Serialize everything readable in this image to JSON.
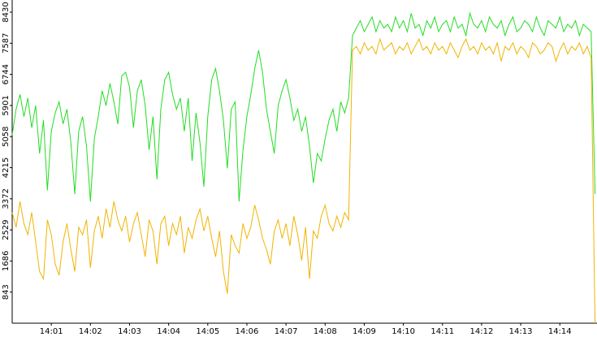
{
  "chart_data": {
    "type": "line",
    "x": [
      0,
      0.1,
      0.2,
      0.3,
      0.4,
      0.5,
      0.6,
      0.7,
      0.8,
      0.9,
      1,
      1.1,
      1.2,
      1.3,
      1.4,
      1.5,
      1.6,
      1.7,
      1.8,
      1.9,
      2,
      2.1,
      2.2,
      2.3,
      2.4,
      2.5,
      2.6,
      2.7,
      2.8,
      2.9,
      3,
      3.1,
      3.2,
      3.3,
      3.4,
      3.5,
      3.6,
      3.7,
      3.8,
      3.9,
      4,
      4.1,
      4.2,
      4.3,
      4.4,
      4.5,
      4.6,
      4.7,
      4.8,
      4.9,
      5,
      5.1,
      5.2,
      5.3,
      5.4,
      5.5,
      5.6,
      5.7,
      5.8,
      5.9,
      6,
      6.1,
      6.2,
      6.3,
      6.4,
      6.5,
      6.6,
      6.7,
      6.8,
      6.9,
      7,
      7.1,
      7.2,
      7.3,
      7.4,
      7.5,
      7.6,
      7.7,
      7.8,
      7.9,
      8,
      8.1,
      8.2,
      8.3,
      8.4,
      8.5,
      8.6,
      8.7,
      8.8,
      8.9,
      9,
      9.1,
      9.2,
      9.3,
      9.4,
      9.5,
      9.6,
      9.7,
      9.8,
      9.9,
      10,
      10.1,
      10.2,
      10.3,
      10.4,
      10.5,
      10.6,
      10.7,
      10.8,
      10.9,
      11,
      11.1,
      11.2,
      11.3,
      11.4,
      11.5,
      11.6,
      11.7,
      11.8,
      11.9,
      12,
      12.1,
      12.2,
      12.3,
      12.4,
      12.5,
      12.6,
      12.7,
      12.8,
      12.9,
      13,
      13.1,
      13.2,
      13.3,
      13.4,
      13.5,
      13.6,
      13.7,
      13.8,
      13.9,
      14,
      14.1,
      14.2,
      14.3,
      14.4,
      14.5,
      14.6,
      14.7,
      14.8,
      14.9
    ],
    "series": [
      {
        "color": "#22dd22",
        "values": [
          5100,
          5800,
          6200,
          5600,
          6100,
          5300,
          5900,
          4600,
          5500,
          3600,
          5200,
          5700,
          6000,
          5400,
          5800,
          4900,
          3500,
          5200,
          5600,
          4800,
          3300,
          5000,
          5600,
          6300,
          5900,
          6500,
          6000,
          5400,
          6700,
          6800,
          6400,
          5300,
          6300,
          6600,
          5900,
          4700,
          5600,
          3900,
          5800,
          6600,
          6800,
          6200,
          5800,
          6100,
          5200,
          6100,
          4400,
          5700,
          4900,
          3700,
          5600,
          6600,
          6900,
          6300,
          5500,
          4200,
          5800,
          6000,
          3300,
          4700,
          5600,
          6200,
          6900,
          7400,
          6800,
          5800,
          5200,
          4600,
          5900,
          6300,
          6600,
          6100,
          5500,
          5800,
          5200,
          5600,
          4800,
          3800,
          4600,
          4400,
          5000,
          5500,
          5800,
          5200,
          6000,
          5700,
          6100,
          7800,
          8000,
          8200,
          7900,
          8100,
          8300,
          7900,
          8200,
          8000,
          8100,
          7900,
          8300,
          8000,
          8200,
          7900,
          8400,
          8000,
          8100,
          7800,
          8200,
          8000,
          8300,
          7900,
          8100,
          8200,
          7900,
          8300,
          8000,
          8100,
          7800,
          8400,
          8100,
          8000,
          8200,
          7900,
          8300,
          8100,
          8000,
          8200,
          7800,
          8100,
          8300,
          7900,
          8000,
          8200,
          8100,
          7900,
          8300,
          8000,
          7800,
          8200,
          8100,
          8000,
          8300,
          7900,
          8100,
          8000,
          8200,
          7800,
          8100,
          8000,
          7900,
          3500
        ]
      },
      {
        "color": "#f0b400",
        "values": [
          3000,
          2600,
          3300,
          2700,
          2400,
          3000,
          2200,
          1400,
          1200,
          2800,
          2400,
          1600,
          1300,
          2200,
          2700,
          2000,
          1400,
          2600,
          2400,
          2800,
          1500,
          2500,
          2900,
          2300,
          3100,
          2600,
          3300,
          2800,
          2500,
          2900,
          2200,
          2700,
          3000,
          2400,
          1800,
          2800,
          2500,
          1600,
          2700,
          2900,
          2100,
          2700,
          2400,
          2900,
          1900,
          2600,
          2300,
          2800,
          3100,
          2500,
          2900,
          2300,
          1800,
          2500,
          1400,
          800,
          2400,
          2100,
          1900,
          2700,
          2300,
          2600,
          3200,
          2800,
          2300,
          2000,
          1600,
          2500,
          2800,
          2300,
          2700,
          2100,
          2900,
          2400,
          1700,
          2600,
          1200,
          2500,
          2300,
          2900,
          3200,
          2700,
          2500,
          2900,
          2600,
          3000,
          2800,
          7400,
          7500,
          7300,
          7600,
          7400,
          7500,
          7300,
          7700,
          7400,
          7500,
          7600,
          7300,
          7500,
          7400,
          7600,
          7300,
          7500,
          7700,
          7400,
          7500,
          7300,
          7600,
          7400,
          7500,
          7300,
          7600,
          7400,
          7200,
          7500,
          7700,
          7400,
          7500,
          7300,
          7600,
          7400,
          7500,
          7300,
          7600,
          7100,
          7500,
          7400,
          7600,
          7300,
          7500,
          7400,
          7200,
          7600,
          7500,
          7300,
          7400,
          7600,
          7500,
          7100,
          7400,
          7600,
          7300,
          7500,
          7400,
          7600,
          7300,
          7500,
          7200,
          0
        ]
      }
    ],
    "xlim": [
      0,
      14.95
    ],
    "xticks": [
      {
        "value": 1,
        "label": "14:01"
      },
      {
        "value": 2,
        "label": "14:02"
      },
      {
        "value": 3,
        "label": "14:03"
      },
      {
        "value": 4,
        "label": "14:04"
      },
      {
        "value": 5,
        "label": "14:05"
      },
      {
        "value": 6,
        "label": "14:06"
      },
      {
        "value": 7,
        "label": "14:07"
      },
      {
        "value": 8,
        "label": "14:08"
      },
      {
        "value": 9,
        "label": "14:09"
      },
      {
        "value": 10,
        "label": "14:10"
      },
      {
        "value": 11,
        "label": "14:11"
      },
      {
        "value": 12,
        "label": "14:12"
      },
      {
        "value": 13,
        "label": "14:13"
      },
      {
        "value": 14,
        "label": "14:14"
      }
    ],
    "ylim": [
      0,
      8760
    ],
    "yticks": [
      843,
      1686,
      2529,
      3372,
      4215,
      5058,
      5901,
      6744,
      7587,
      8430
    ]
  }
}
